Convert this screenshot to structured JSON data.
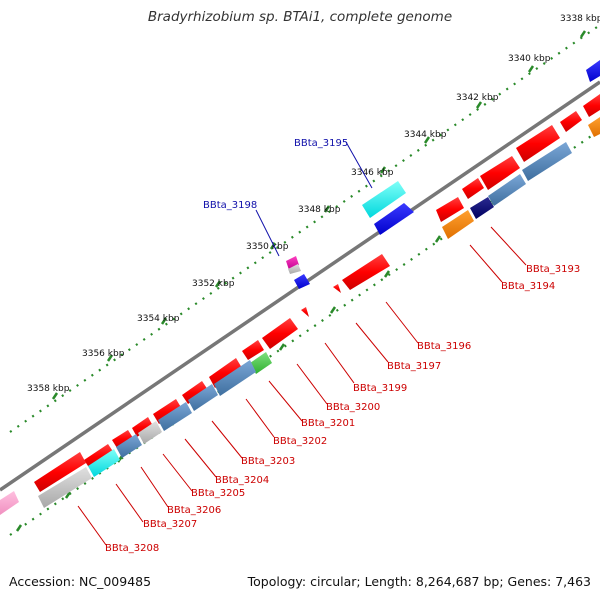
{
  "title": "Bradyrhizobium sp. BTAi1, complete genome",
  "footer": {
    "accession": "Accession: NC_009485",
    "summary": "Topology: circular; Length: 8,264,687 bp; Genes: 7,463"
  },
  "colors": {
    "backbone": "#777777",
    "ruler": "#2a8a2a",
    "label_red": "#cc0000",
    "label_blue": "#1010aa"
  },
  "ruler_ticks": [
    {
      "kbp": 3338,
      "label": "3338 kbp"
    },
    {
      "kbp": 3340,
      "label": "3340 kbp"
    },
    {
      "kbp": 3342,
      "label": "3342 kbp"
    },
    {
      "kbp": 3344,
      "label": "3344 kbp"
    },
    {
      "kbp": 3346,
      "label": "3346 kbp"
    },
    {
      "kbp": 3348,
      "label": "3348 kbp"
    },
    {
      "kbp": 3350,
      "label": "3350 kbp"
    },
    {
      "kbp": 3352,
      "label": "3352 kbp"
    },
    {
      "kbp": 3354,
      "label": "3354 kbp"
    },
    {
      "kbp": 3356,
      "label": "3356 kbp"
    },
    {
      "kbp": 3358,
      "label": "3358 kbp"
    }
  ],
  "gene_labels": [
    {
      "name": "BBta_3193",
      "color": "#cc0000"
    },
    {
      "name": "BBta_3194",
      "color": "#cc0000"
    },
    {
      "name": "BBta_3195",
      "color": "#1010aa"
    },
    {
      "name": "BBta_3196",
      "color": "#cc0000"
    },
    {
      "name": "BBta_3197",
      "color": "#cc0000"
    },
    {
      "name": "BBta_3198",
      "color": "#1010aa"
    },
    {
      "name": "BBta_3199",
      "color": "#cc0000"
    },
    {
      "name": "BBta_3200",
      "color": "#cc0000"
    },
    {
      "name": "BBta_3201",
      "color": "#cc0000"
    },
    {
      "name": "BBta_3202",
      "color": "#cc0000"
    },
    {
      "name": "BBta_3203",
      "color": "#cc0000"
    },
    {
      "name": "BBta_3204",
      "color": "#cc0000"
    },
    {
      "name": "BBta_3205",
      "color": "#cc0000"
    },
    {
      "name": "BBta_3206",
      "color": "#cc0000"
    },
    {
      "name": "BBta_3207",
      "color": "#cc0000"
    },
    {
      "name": "BBta_3208",
      "color": "#cc0000"
    }
  ]
}
